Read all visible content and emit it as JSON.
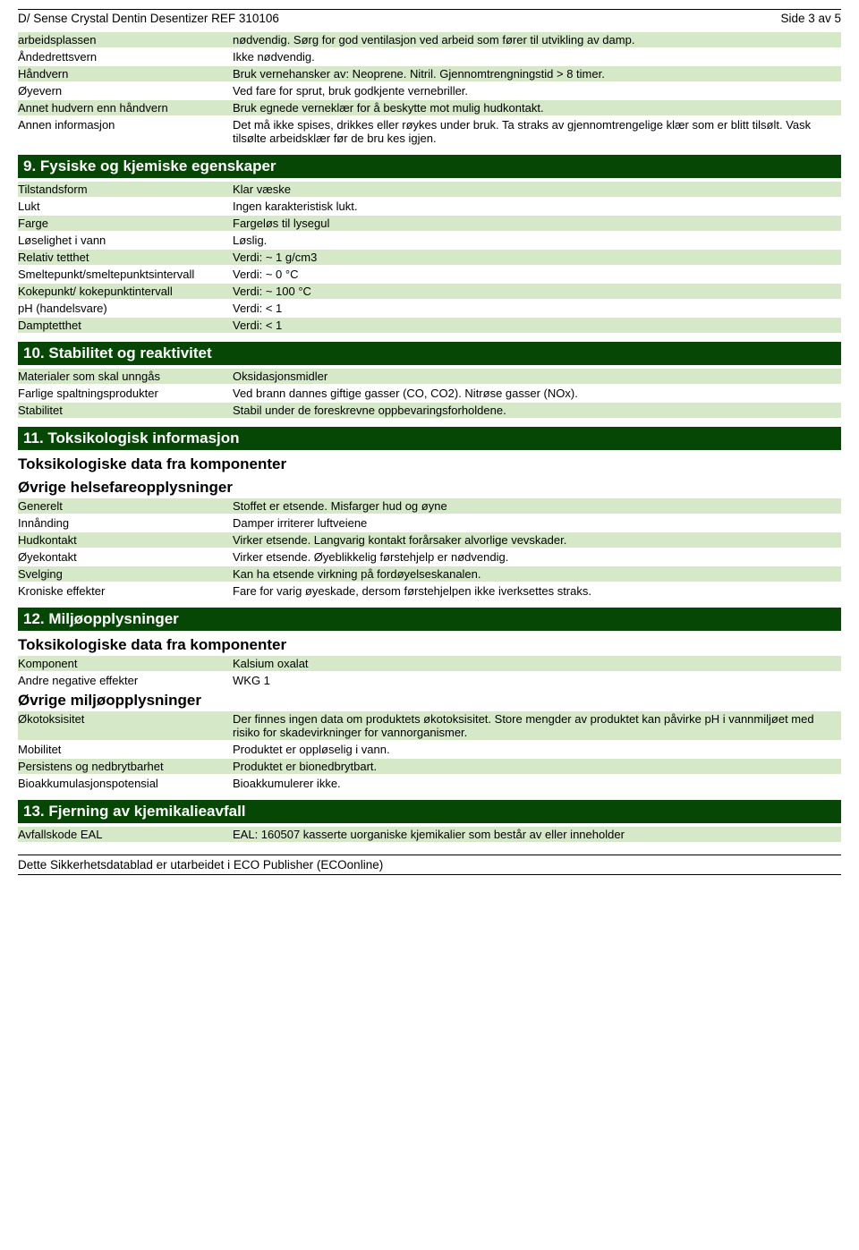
{
  "header": {
    "title_left": "D/ Sense Crystal Dentin Desentizer REF 310106",
    "title_right": "Side 3 av 5"
  },
  "top_rows": [
    {
      "label": "arbeidsplassen",
      "value": "nødvendig. Sørg for god ventilasjon ved arbeid som fører til utvikling av damp.",
      "bg": true
    },
    {
      "label": "Åndedrettsvern",
      "value": "Ikke nødvendig.",
      "bg": false
    },
    {
      "label": "Håndvern",
      "value": "Bruk vernehansker av: Neoprene. Nitril. Gjennomtrengningstid > 8 timer.",
      "bg": true
    },
    {
      "label": "Øyevern",
      "value": "Ved fare for sprut, bruk godkjente vernebriller.",
      "bg": false
    },
    {
      "label": "Annet hudvern enn håndvern",
      "value": "Bruk egnede verneklær for å beskytte mot mulig hudkontakt.",
      "bg": true
    },
    {
      "label": "Annen informasjon",
      "value": "Det må ikke spises, drikkes eller røykes under bruk. Ta straks av gjennomtrengelige klær som er blitt tilsølt. Vask tilsølte arbeidsklær før de bru kes igjen.",
      "bg": false
    }
  ],
  "section9": {
    "title": "9. Fysiske og kjemiske egenskaper",
    "rows": [
      {
        "label": "Tilstandsform",
        "value": "Klar væske",
        "bg": true
      },
      {
        "label": "Lukt",
        "value": "Ingen karakteristisk lukt.",
        "bg": false
      },
      {
        "label": "Farge",
        "value": "Fargeløs til lysegul",
        "bg": true
      },
      {
        "label": "Løselighet i vann",
        "value": "Løslig.",
        "bg": false
      },
      {
        "label": "Relativ tetthet",
        "value": "Verdi: ~ 1 g/cm3",
        "bg": true
      },
      {
        "label": "Smeltepunkt/smeltepunktsintervall",
        "value": "Verdi: ~ 0 °C",
        "bg": false
      },
      {
        "label": "Kokepunkt/ kokepunktintervall",
        "value": "Verdi: ~ 100 °C",
        "bg": true
      },
      {
        "label": "pH (handelsvare)",
        "value": "Verdi: < 1",
        "bg": false
      },
      {
        "label": "Damptetthet",
        "value": "Verdi: < 1",
        "bg": true
      }
    ]
  },
  "section10": {
    "title": "10. Stabilitet og reaktivitet",
    "rows": [
      {
        "label": "Materialer som skal unngås",
        "value": "Oksidasjonsmidler",
        "bg": true
      },
      {
        "label": "Farlige spaltningsprodukter",
        "value": "Ved brann dannes giftige gasser (CO, CO2). Nitrøse gasser (NOx).",
        "bg": false
      },
      {
        "label": "Stabilitet",
        "value": "Stabil under de foreskrevne oppbevaringsforholdene.",
        "bg": true
      }
    ]
  },
  "section11": {
    "title": "11. Toksikologisk informasjon",
    "sub1": "Toksikologiske data fra komponenter",
    "sub2": "Øvrige helsefareopplysninger",
    "rows": [
      {
        "label": "Generelt",
        "value": "Stoffet er etsende. Misfarger hud og øyne",
        "bg": true
      },
      {
        "label": "Innånding",
        "value": "Damper irriterer luftveiene",
        "bg": false
      },
      {
        "label": "Hudkontakt",
        "value": "Virker etsende. Langvarig kontakt forårsaker alvorlige vevskader.",
        "bg": true
      },
      {
        "label": "Øyekontakt",
        "value": "Virker etsende. Øyeblikkelig førstehjelp er nødvendig.",
        "bg": false
      },
      {
        "label": "Svelging",
        "value": "Kan ha etsende virkning på fordøyelseskanalen.",
        "bg": true
      },
      {
        "label": "Kroniske effekter",
        "value": "Fare for varig øyeskade, dersom førstehjelpen ikke iverksettes straks.",
        "bg": false
      }
    ]
  },
  "section12": {
    "title": "12. Miljøopplysninger",
    "sub1": "Toksikologiske data fra komponenter",
    "rows1": [
      {
        "label": "Komponent",
        "value": "Kalsium oxalat",
        "bg": true
      },
      {
        "label": "Andre negative effekter",
        "value": "WKG 1",
        "bg": false
      }
    ],
    "sub2": "Øvrige miljøopplysninger",
    "rows2": [
      {
        "label": "Økotoksisitet",
        "value": "Der finnes ingen data om produktets økotoksisitet. Store mengder av produktet kan påvirke pH i vannmiljøet med risiko for skadevirkninger for vannorganismer.",
        "bg": true
      },
      {
        "label": "Mobilitet",
        "value": "Produktet er oppløselig i vann.",
        "bg": false
      },
      {
        "label": "Persistens og nedbrytbarhet",
        "value": "Produktet er bionedbrytbart.",
        "bg": true
      },
      {
        "label": "Bioakkumulasjonspotensial",
        "value": "Bioakkumulerer ikke.",
        "bg": false
      }
    ]
  },
  "section13": {
    "title": "13. Fjerning av kjemikalieavfall",
    "rows": [
      {
        "label": "Avfallskode EAL",
        "value": "EAL: 160507 kasserte uorganiske kjemikalier som består av eller inneholder",
        "bg": true
      }
    ]
  },
  "footer": "Dette Sikkerhetsdatablad er utarbeidet i ECO Publisher (ECOonline)",
  "colors": {
    "section_bg": "#064706",
    "row_bg": "#d5e8c8"
  }
}
